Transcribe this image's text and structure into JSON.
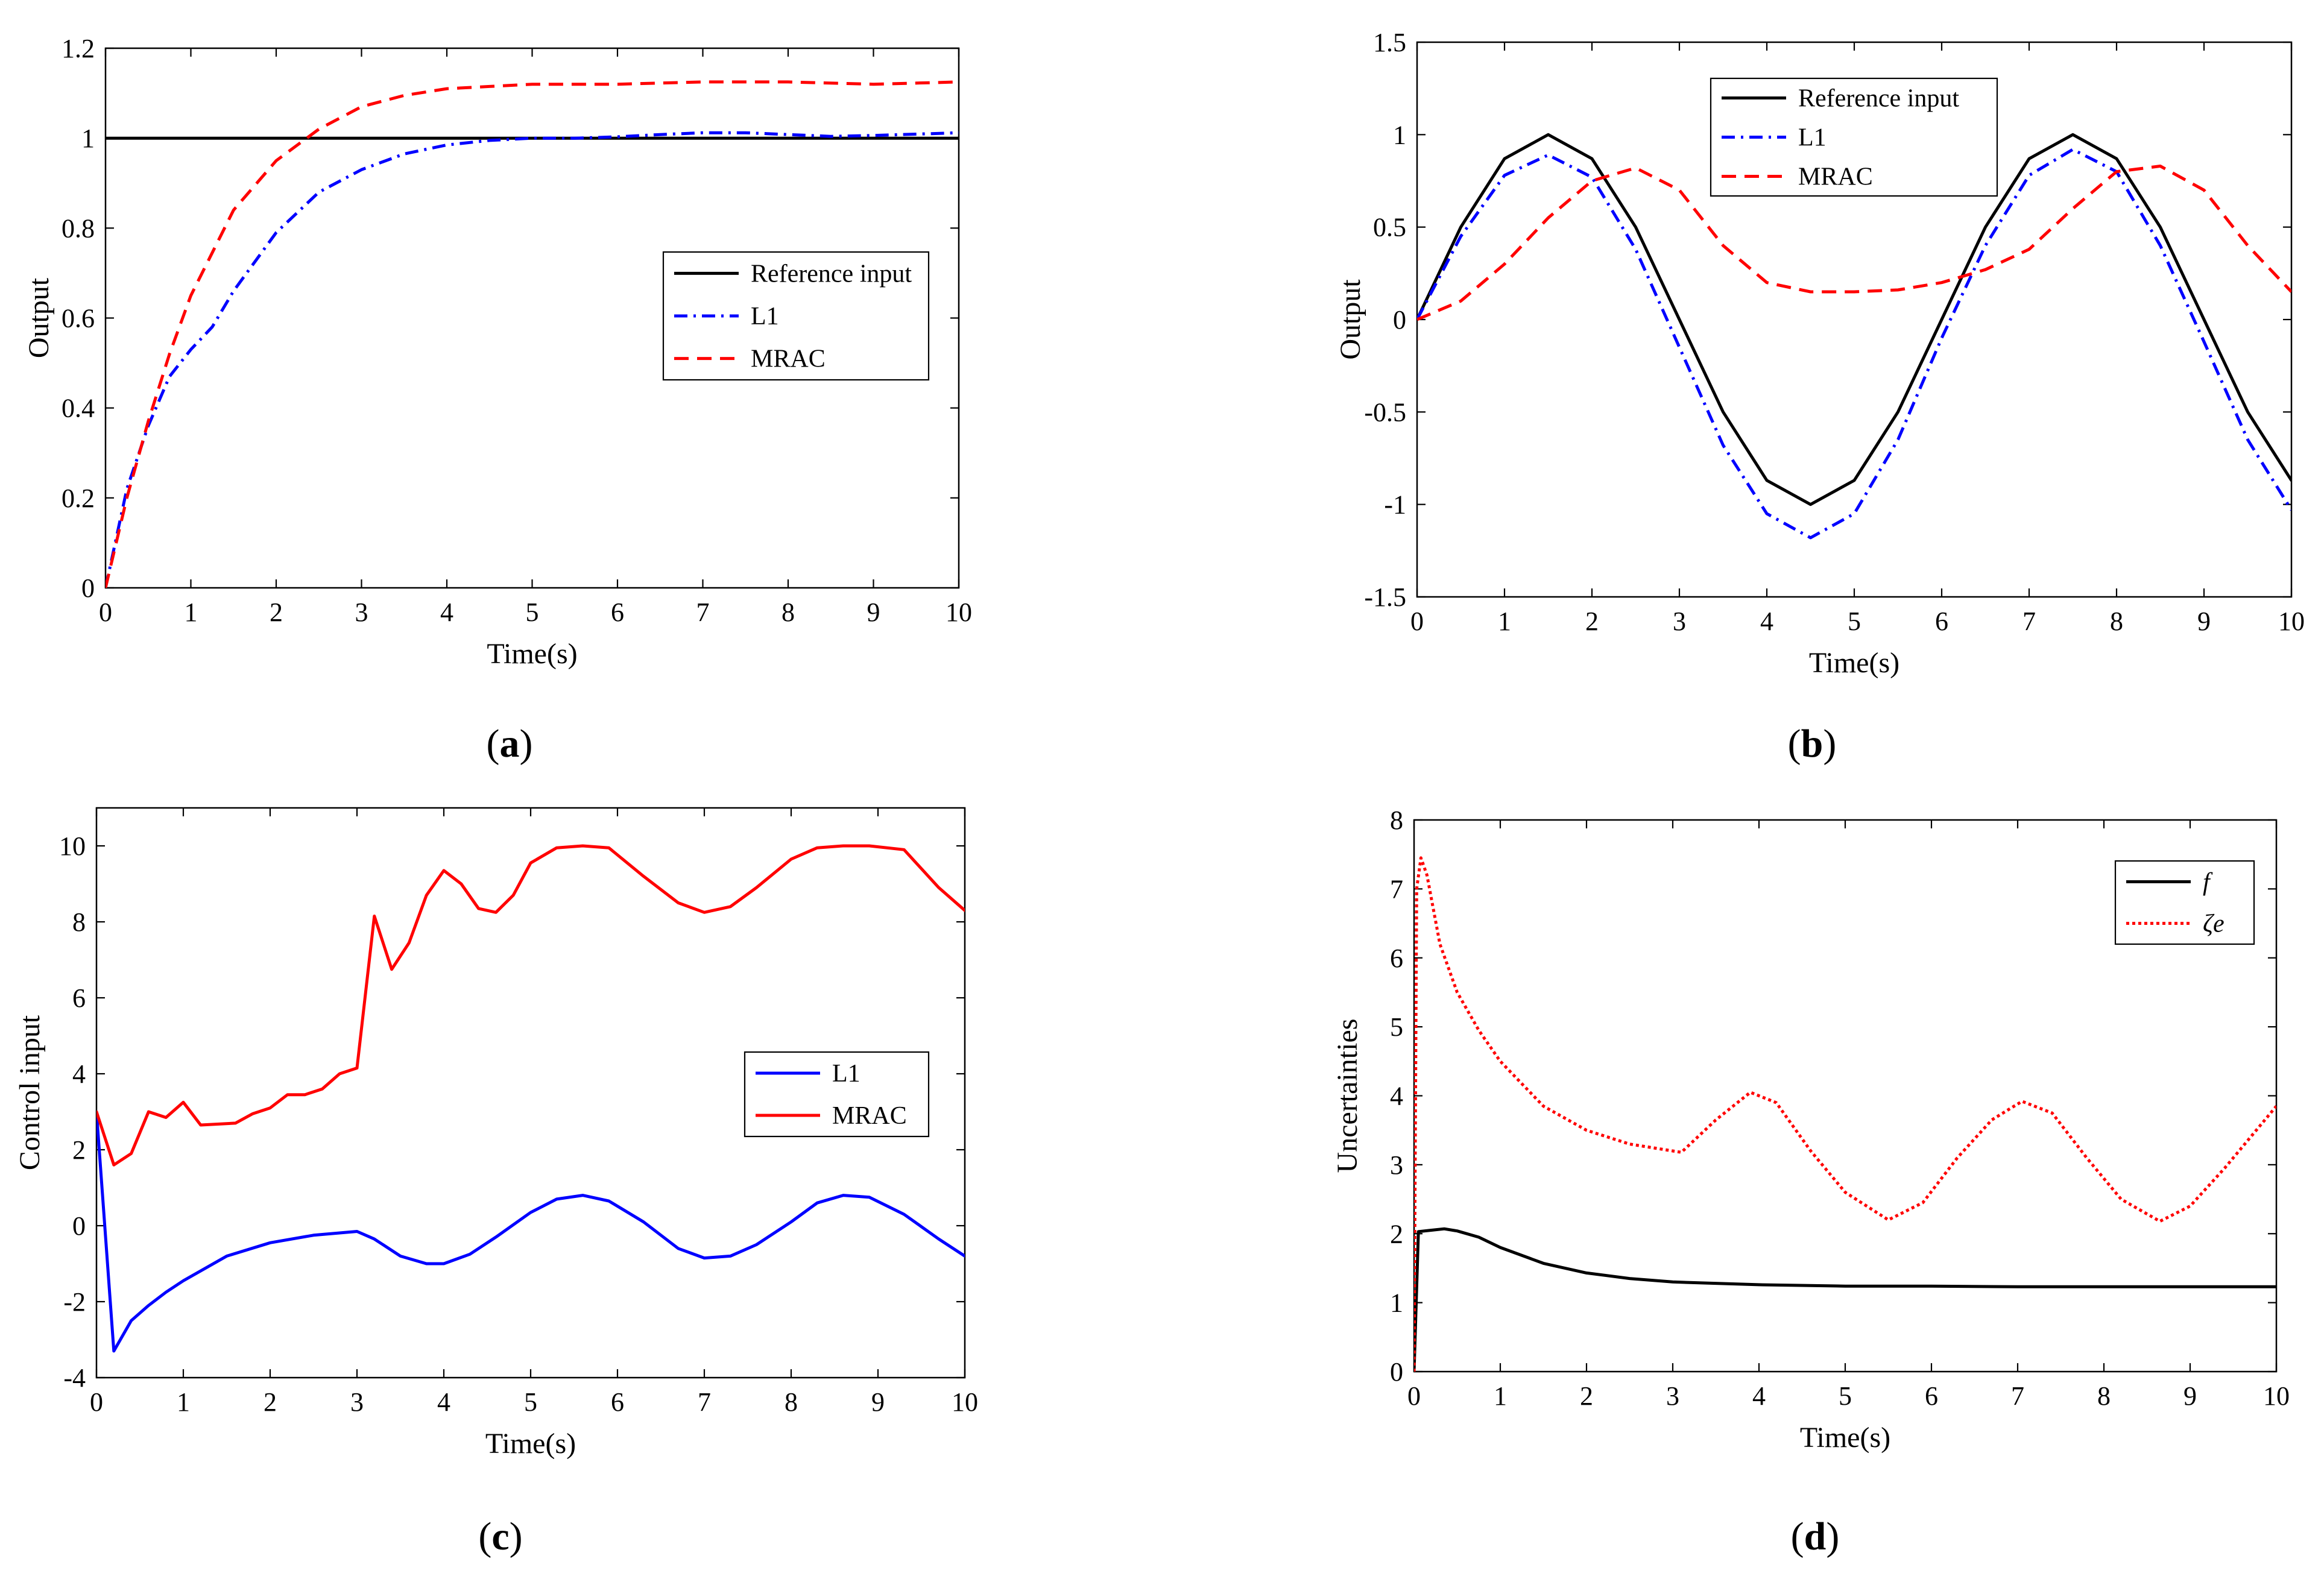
{
  "chart_data": [
    {
      "panel_label": "a",
      "type": "line",
      "xlabel": "Time(s)",
      "ylabel": "Output",
      "xlim": [
        0,
        10
      ],
      "ylim": [
        0,
        1.2
      ],
      "xticks": [
        0,
        1,
        2,
        3,
        4,
        5,
        6,
        7,
        8,
        9,
        10
      ],
      "xtick_labels": [
        "0",
        "1",
        "2",
        "3",
        "4",
        "5",
        "6",
        "7",
        "8",
        "9",
        "10"
      ],
      "yticks": [
        0,
        0.2,
        0.4,
        0.6,
        0.8,
        1,
        1.2
      ],
      "ytick_labels": [
        "0",
        "0.2",
        "0.4",
        "0.6",
        "0.8",
        "1",
        "1.2"
      ],
      "legend_position": "center-right",
      "series": [
        {
          "name": "Reference input",
          "color": "#000000",
          "dash": "solid",
          "x": [
            0,
            10
          ],
          "y": [
            1,
            1
          ]
        },
        {
          "name": "L1",
          "color": "#0000ff",
          "dash": "dashdot",
          "x": [
            0,
            0.25,
            0.5,
            0.75,
            1,
            1.25,
            1.5,
            2,
            2.5,
            3,
            3.5,
            4,
            4.5,
            5,
            5.5,
            6,
            6.5,
            7,
            7.5,
            8,
            8.5,
            9,
            9.5,
            10
          ],
          "y": [
            0,
            0.22,
            0.36,
            0.47,
            0.53,
            0.58,
            0.66,
            0.79,
            0.88,
            0.93,
            0.965,
            0.985,
            0.995,
            1.0,
            1.0,
            1.003,
            1.008,
            1.012,
            1.012,
            1.008,
            1.004,
            1.006,
            1.009,
            1.012
          ]
        },
        {
          "name": "MRAC",
          "color": "#ff0000",
          "dash": "dashed",
          "x": [
            0,
            0.25,
            0.5,
            0.75,
            1,
            1.5,
            2,
            2.5,
            3,
            3.5,
            4,
            4.5,
            5,
            5.5,
            6,
            7,
            8,
            9,
            10
          ],
          "y": [
            0,
            0.2,
            0.37,
            0.52,
            0.65,
            0.84,
            0.95,
            1.02,
            1.07,
            1.095,
            1.11,
            1.115,
            1.12,
            1.12,
            1.12,
            1.125,
            1.125,
            1.12,
            1.125
          ]
        }
      ]
    },
    {
      "panel_label": "b",
      "type": "line",
      "xlabel": "Time(s)",
      "ylabel": "Output",
      "xlim": [
        0,
        10
      ],
      "ylim": [
        -1.5,
        1.5
      ],
      "xticks": [
        0,
        1,
        2,
        3,
        4,
        5,
        6,
        7,
        8,
        9,
        10
      ],
      "xtick_labels": [
        "0",
        "1",
        "2",
        "3",
        "4",
        "5",
        "6",
        "7",
        "8",
        "9",
        "10"
      ],
      "yticks": [
        -1.5,
        -1,
        -0.5,
        0,
        0.5,
        1,
        1.5
      ],
      "ytick_labels": [
        "-1.5",
        "-1",
        "-0.5",
        "0",
        "0.5",
        "1",
        "1.5"
      ],
      "legend_position": "top-center",
      "series": [
        {
          "name": "Reference input",
          "color": "#000000",
          "dash": "solid",
          "x": [
            0,
            0.5,
            1,
            1.5,
            2,
            2.5,
            3,
            3.5,
            4,
            4.5,
            5,
            5.5,
            6,
            6.5,
            7,
            7.5,
            8,
            8.5,
            9,
            9.5,
            10
          ],
          "y": [
            0,
            0.5,
            0.87,
            1.0,
            0.87,
            0.5,
            0.0,
            -0.5,
            -0.87,
            -1.0,
            -0.87,
            -0.5,
            0.0,
            0.5,
            0.87,
            1.0,
            0.87,
            0.5,
            0.0,
            -0.5,
            -0.87
          ]
        },
        {
          "name": "L1",
          "color": "#0000ff",
          "dash": "dashdot",
          "x": [
            0,
            0.5,
            1,
            1.5,
            2,
            2.5,
            3,
            3.5,
            4,
            4.5,
            5,
            5.5,
            6,
            6.5,
            7,
            7.5,
            8,
            8.5,
            9,
            9.5,
            10
          ],
          "y": [
            0,
            0.45,
            0.78,
            0.89,
            0.77,
            0.38,
            -0.15,
            -0.68,
            -1.05,
            -1.18,
            -1.05,
            -0.65,
            -0.1,
            0.4,
            0.78,
            0.92,
            0.8,
            0.4,
            -0.12,
            -0.65,
            -1.03
          ]
        },
        {
          "name": "MRAC",
          "color": "#ff0000",
          "dash": "dashed",
          "x": [
            0,
            0.5,
            1,
            1.5,
            2,
            2.5,
            3,
            3.5,
            4,
            4.5,
            5,
            5.5,
            6,
            6.5,
            7,
            7.5,
            8,
            8.5,
            9,
            9.5,
            10
          ],
          "y": [
            0,
            0.1,
            0.3,
            0.55,
            0.75,
            0.82,
            0.7,
            0.4,
            0.2,
            0.15,
            0.15,
            0.16,
            0.2,
            0.27,
            0.38,
            0.6,
            0.8,
            0.83,
            0.7,
            0.4,
            0.15
          ]
        }
      ]
    },
    {
      "panel_label": "c",
      "type": "line",
      "xlabel": "Time(s)",
      "ylabel": "Control input",
      "xlim": [
        0,
        10
      ],
      "ylim": [
        -4,
        11
      ],
      "xticks": [
        0,
        1,
        2,
        3,
        4,
        5,
        6,
        7,
        8,
        9,
        10
      ],
      "xtick_labels": [
        "0",
        "1",
        "2",
        "3",
        "4",
        "5",
        "6",
        "7",
        "8",
        "9",
        "10"
      ],
      "yticks": [
        -4,
        -2,
        0,
        2,
        4,
        6,
        8,
        10
      ],
      "ytick_labels": [
        "-4",
        "-2",
        "0",
        "2",
        "4",
        "6",
        "8",
        "10"
      ],
      "legend_position": "center-right",
      "series": [
        {
          "name": "L1",
          "color": "#0000ff",
          "dash": "solid",
          "x": [
            0,
            0.2,
            0.4,
            0.6,
            0.8,
            1,
            1.5,
            2,
            2.5,
            3,
            3.2,
            3.5,
            3.8,
            4,
            4.3,
            4.6,
            5,
            5.3,
            5.6,
            5.9,
            6.3,
            6.7,
            7,
            7.3,
            7.6,
            8,
            8.3,
            8.6,
            8.9,
            9.3,
            9.7,
            10
          ],
          "y": [
            3,
            -3.3,
            -2.5,
            -2.1,
            -1.75,
            -1.45,
            -0.8,
            -0.45,
            -0.25,
            -0.15,
            -0.35,
            -0.8,
            -1.0,
            -1.0,
            -0.75,
            -0.3,
            0.35,
            0.7,
            0.8,
            0.65,
            0.1,
            -0.6,
            -0.85,
            -0.8,
            -0.5,
            0.1,
            0.6,
            0.8,
            0.75,
            0.3,
            -0.35,
            -0.8
          ]
        },
        {
          "name": "MRAC",
          "color": "#ff0000",
          "dash": "solid",
          "x": [
            0,
            0.2,
            0.4,
            0.6,
            0.8,
            1,
            1.2,
            1.6,
            1.8,
            2,
            2.2,
            2.4,
            2.6,
            2.8,
            3,
            3.2,
            3.4,
            3.6,
            3.8,
            4,
            4.2,
            4.4,
            4.6,
            4.8,
            5,
            5.3,
            5.6,
            5.9,
            6.3,
            6.7,
            7,
            7.3,
            7.6,
            8,
            8.3,
            8.6,
            8.9,
            9.3,
            9.7,
            10
          ],
          "y": [
            3,
            1.6,
            1.9,
            3.0,
            2.85,
            3.25,
            2.65,
            2.7,
            2.95,
            3.1,
            3.45,
            3.45,
            3.6,
            4.0,
            4.15,
            8.15,
            6.75,
            7.45,
            8.7,
            9.35,
            9.0,
            8.35,
            8.25,
            8.7,
            9.55,
            9.95,
            10.0,
            9.95,
            9.2,
            8.5,
            8.25,
            8.4,
            8.9,
            9.65,
            9.95,
            10.0,
            10.0,
            9.9,
            8.9,
            8.3
          ]
        }
      ]
    },
    {
      "panel_label": "d",
      "type": "line",
      "xlabel": "Time(s)",
      "ylabel": "Uncertainties",
      "xlim": [
        0,
        10
      ],
      "ylim": [
        0,
        8
      ],
      "xticks": [
        0,
        1,
        2,
        3,
        4,
        5,
        6,
        7,
        8,
        9,
        10
      ],
      "xtick_labels": [
        "0",
        "1",
        "2",
        "3",
        "4",
        "5",
        "6",
        "7",
        "8",
        "9",
        "10"
      ],
      "yticks": [
        0,
        1,
        2,
        3,
        4,
        5,
        6,
        7,
        8
      ],
      "ytick_labels": [
        "0",
        "1",
        "2",
        "3",
        "4",
        "5",
        "6",
        "7",
        "8"
      ],
      "legend_position": "top-right",
      "series": [
        {
          "name": "f",
          "color": "#000000",
          "dash": "solid",
          "x": [
            0,
            0.05,
            0.2,
            0.35,
            0.5,
            0.75,
            1,
            1.5,
            2,
            2.5,
            3,
            3.5,
            4,
            5,
            6,
            7,
            8,
            9,
            10
          ],
          "y": [
            0,
            2.03,
            2.05,
            2.07,
            2.04,
            1.95,
            1.8,
            1.57,
            1.43,
            1.35,
            1.3,
            1.28,
            1.26,
            1.24,
            1.24,
            1.23,
            1.23,
            1.23,
            1.23
          ]
        },
        {
          "name": "ζe",
          "color": "#ff0000",
          "dash": "dotted",
          "x": [
            0,
            0.03,
            0.08,
            0.15,
            0.3,
            0.5,
            0.75,
            1,
            1.5,
            2,
            2.5,
            3,
            3.1,
            3.5,
            3.9,
            4.2,
            4.6,
            5,
            5.5,
            5.9,
            6.3,
            6.7,
            7.05,
            7.4,
            7.8,
            8.2,
            8.65,
            9,
            9.4,
            9.8,
            10
          ],
          "y": [
            0,
            7.0,
            7.45,
            7.2,
            6.2,
            5.5,
            4.95,
            4.5,
            3.85,
            3.5,
            3.3,
            3.2,
            3.18,
            3.65,
            4.05,
            3.9,
            3.2,
            2.6,
            2.2,
            2.45,
            3.1,
            3.65,
            3.92,
            3.75,
            3.1,
            2.5,
            2.18,
            2.4,
            2.95,
            3.55,
            3.85
          ]
        }
      ]
    }
  ]
}
